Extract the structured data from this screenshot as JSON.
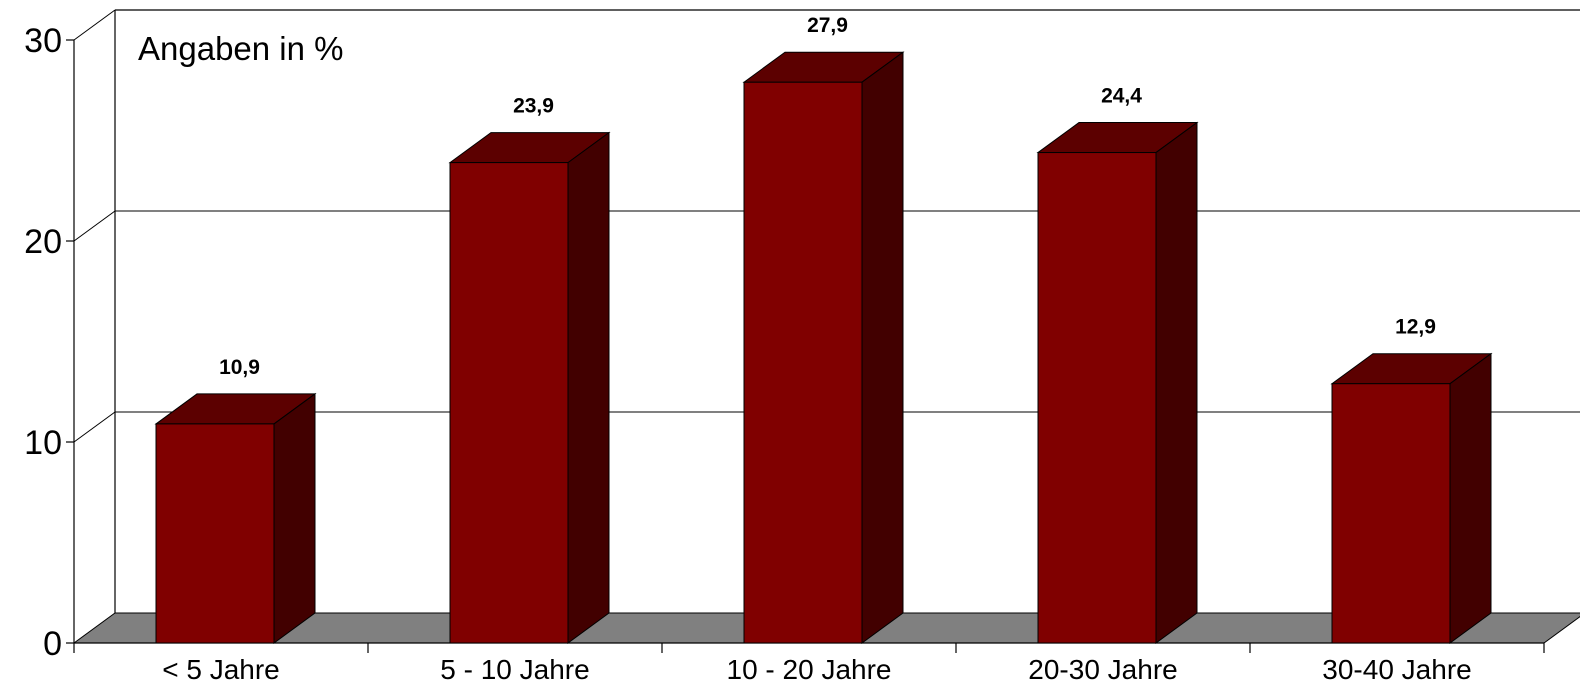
{
  "chart_data": {
    "type": "bar",
    "annotation": "Angaben in %",
    "categories": [
      "< 5 Jahre",
      "5 - 10 Jahre",
      "10 - 20 Jahre",
      "20-30 Jahre",
      "30-40 Jahre"
    ],
    "values": [
      10.9,
      23.9,
      27.9,
      24.4,
      12.9
    ],
    "value_labels": [
      "10,9",
      "23,9",
      "27,9",
      "24,4",
      "12,9"
    ],
    "yticks": [
      0,
      10,
      20,
      30
    ],
    "ylim": [
      0,
      30
    ],
    "grid": true,
    "style": "3d",
    "colors": {
      "bar_front": "#800000",
      "bar_top": "#5c0000",
      "bar_side": "#420000",
      "floor": "#808080"
    }
  }
}
